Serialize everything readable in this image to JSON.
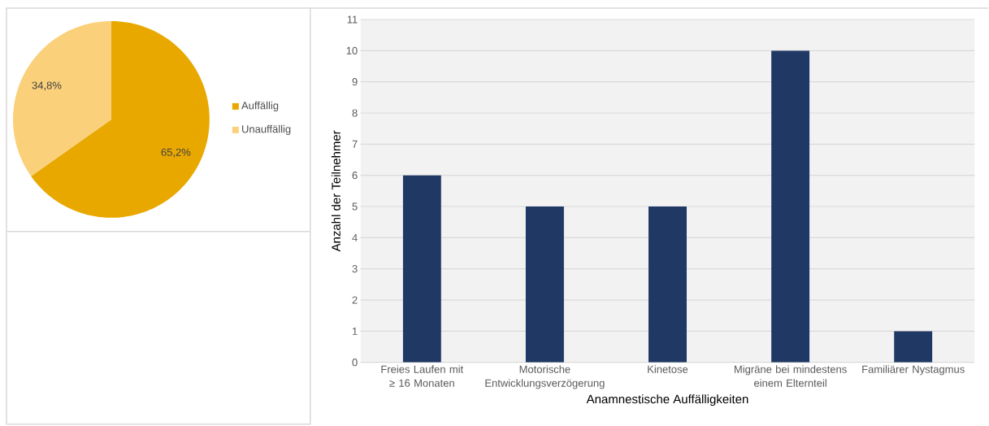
{
  "chart_data": [
    {
      "type": "pie",
      "categories": [
        "Auffällig",
        "Unauffällig"
      ],
      "values": [
        65.2,
        34.8
      ],
      "colors": [
        "#e8a800",
        "#fbd07a"
      ],
      "value_labels": [
        "65,2%",
        "34,8%"
      ],
      "legend": "right"
    },
    {
      "type": "bar",
      "xlabel": "Anamnestische Auffälligkeiten",
      "ylabel": "Anzahl der Teilnehmer",
      "categories": [
        "Freies Laufen mit ≥ 16 Monaten",
        "Motorische Entwicklungsverzögerung",
        "Kinetose",
        "Migräne bei mindestens einem Elternteil",
        "Familiärer Nystagmus"
      ],
      "values": [
        6,
        5,
        5,
        10,
        1
      ],
      "color": "#203864",
      "ylim": [
        0,
        11
      ],
      "yticks": [
        0,
        1,
        2,
        3,
        4,
        5,
        6,
        7,
        8,
        9,
        10,
        11
      ],
      "grid": "y"
    }
  ]
}
